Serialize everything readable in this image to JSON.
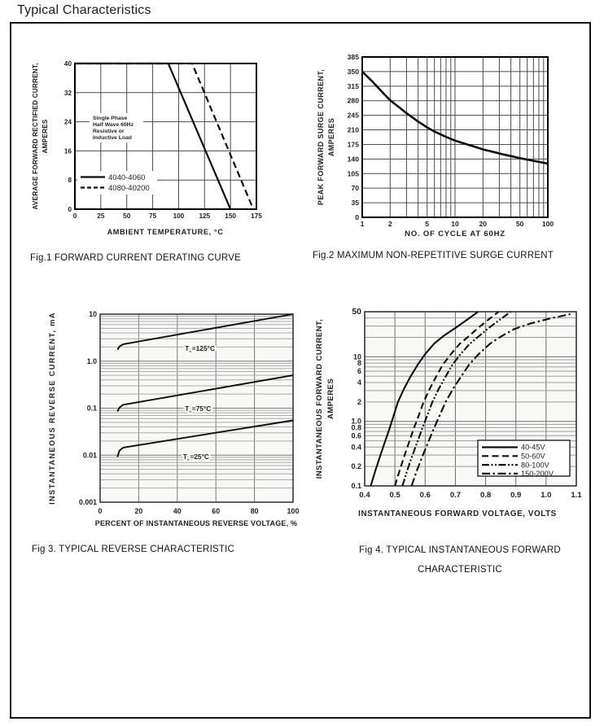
{
  "page": {
    "title": "Typical Characteristics"
  },
  "chart_data": [
    {
      "id": "fig1",
      "type": "line",
      "caption": "Fig.1 FORWARD CURRENT DERATING CURVE",
      "xlabel": "AMBIENT TEMPERATURE, °C",
      "ylabel_lines": [
        "AVERAGE FORWARD RECTIFIED CURRENT,",
        "AMPERES"
      ],
      "xscale": "linear",
      "xlim": [
        0,
        175
      ],
      "x_ticks": [
        "0",
        "25",
        "50",
        "75",
        "100",
        "125",
        "150",
        "175"
      ],
      "yscale": "linear",
      "ylim": [
        0,
        40
      ],
      "y_ticks": [
        "0",
        "8",
        "16",
        "24",
        "32",
        "40"
      ],
      "annotation_lines": [
        "Single Phase",
        "Half Wave 60Hz",
        "Resistive or",
        "Inductive Load"
      ],
      "series": [
        {
          "name": "4040-4060",
          "style": "solid",
          "points": [
            [
              0,
              40
            ],
            [
              90,
              40
            ],
            [
              150,
              0
            ]
          ]
        },
        {
          "name": "4080-40200",
          "style": "dashed",
          "points": [
            [
              0,
              40
            ],
            [
              113,
              40
            ],
            [
              172,
              0
            ]
          ]
        }
      ]
    },
    {
      "id": "fig2",
      "type": "line",
      "caption": "Fig.2 MAXIMUM NON-REPETITIVE SURGE CURRENT",
      "xlabel": "NO. OF CYCLE AT 60HZ",
      "ylabel_lines": [
        "PEAK FORWARD SURGE CURRENT,",
        "AMPERES"
      ],
      "xscale": "log",
      "xlim": [
        1,
        100
      ],
      "x_ticks": [
        "1",
        "2",
        "5",
        "10",
        "20",
        "50",
        "100"
      ],
      "yscale": "linear",
      "ylim": [
        0,
        385
      ],
      "y_ticks": [
        "0",
        "35",
        "70",
        "105",
        "140",
        "175",
        "210",
        "245",
        "280",
        "315",
        "350",
        "385"
      ],
      "series": [
        {
          "name": "surge-current",
          "style": "solid",
          "points": [
            [
              1,
              350
            ],
            [
              1.3,
              325
            ],
            [
              1.7,
              297
            ],
            [
              2,
              281
            ],
            [
              2.5,
              264
            ],
            [
              3,
              250
            ],
            [
              4,
              230
            ],
            [
              5,
              216
            ],
            [
              6,
              206
            ],
            [
              8,
              193
            ],
            [
              10,
              184
            ],
            [
              13,
              176
            ],
            [
              16,
              170
            ],
            [
              20,
              163
            ],
            [
              26,
              157
            ],
            [
              33,
              151
            ],
            [
              42,
              146
            ],
            [
              50,
              142
            ],
            [
              65,
              137
            ],
            [
              80,
              133
            ],
            [
              100,
              129
            ]
          ]
        }
      ]
    },
    {
      "id": "fig3",
      "type": "line",
      "caption": "Fig 3. TYPICAL REVERSE CHARACTERISTIC",
      "xlabel": "PERCENT OF INSTANTANEOUS REVERSE VOLTAGE, %",
      "ylabel": "INSTANTANEOUS REVERSE CURRENT, mA",
      "xscale": "linear",
      "xlim": [
        0,
        100
      ],
      "x_ticks": [
        "0",
        "20",
        "40",
        "60",
        "80",
        "100"
      ],
      "yscale": "log",
      "ylim": [
        0.001,
        10
      ],
      "y_ticks": [
        "10",
        "1.0",
        "0.1",
        "0.01",
        "0.001"
      ],
      "series": [
        {
          "name": "tj-125",
          "label": "TJ=125°C",
          "style": "solid",
          "label_at": [
            44,
            1.87
          ],
          "points": [
            [
              9,
              1.75
            ],
            [
              10,
              2.05
            ],
            [
              12,
              2.3
            ],
            [
              100,
              10
            ]
          ]
        },
        {
          "name": "tj-75",
          "label": "TJ=75°C",
          "style": "solid",
          "label_at": [
            44,
            0.098
          ],
          "points": [
            [
              9,
              0.085
            ],
            [
              10,
              0.103
            ],
            [
              12,
              0.118
            ],
            [
              100,
              0.5
            ]
          ]
        },
        {
          "name": "tj-25",
          "label": "TJ=25°C",
          "style": "solid",
          "label_at": [
            43,
            0.0093
          ],
          "points": [
            [
              9,
              0.0092
            ],
            [
              10,
              0.0125
            ],
            [
              12,
              0.0145
            ],
            [
              100,
              0.055
            ]
          ]
        }
      ]
    },
    {
      "id": "fig4",
      "type": "line",
      "caption": "Fig 4. TYPICAL INSTANTANEOUS FORWARD",
      "caption2": "CHARACTERISTIC",
      "xlabel": "INSTANTANEOUS FORWARD VOLTAGE, VOLTS",
      "ylabel_lines": [
        "INSTANTANEOUS FORWARD CURRENT,",
        "AMPERES"
      ],
      "xscale": "linear",
      "xlim": [
        0.4,
        1.1
      ],
      "x_ticks": [
        "0.4",
        "0.5",
        "0.6",
        "0.7",
        "0.8",
        "0.9",
        "1.0",
        "1.1"
      ],
      "yscale": "log",
      "ylim": [
        0.1,
        50
      ],
      "y_ticks": [
        "50",
        "10",
        "8",
        "6",
        "4",
        "2",
        "1.0",
        "0.8",
        "0.6",
        "0.4",
        "0.2",
        "0.1"
      ],
      "series": [
        {
          "name": "40-45V",
          "style": "solid",
          "points": [
            [
              0.42,
              0.1
            ],
            [
              0.435,
              0.17
            ],
            [
              0.45,
              0.28
            ],
            [
              0.465,
              0.45
            ],
            [
              0.48,
              0.72
            ],
            [
              0.495,
              1.2
            ],
            [
              0.51,
              2
            ],
            [
              0.53,
              3.2
            ],
            [
              0.55,
              4.8
            ],
            [
              0.575,
              7.5
            ],
            [
              0.6,
              11
            ],
            [
              0.63,
              16
            ],
            [
              0.66,
              21
            ],
            [
              0.7,
              28
            ],
            [
              0.74,
              38
            ],
            [
              0.775,
              50
            ]
          ]
        },
        {
          "name": "50-60V",
          "style": "dashed",
          "points": [
            [
              0.5,
              0.1
            ],
            [
              0.515,
              0.17
            ],
            [
              0.53,
              0.28
            ],
            [
              0.545,
              0.45
            ],
            [
              0.56,
              0.72
            ],
            [
              0.578,
              1.2
            ],
            [
              0.595,
              2
            ],
            [
              0.615,
              3.2
            ],
            [
              0.635,
              4.8
            ],
            [
              0.658,
              7.5
            ],
            [
              0.685,
              11
            ],
            [
              0.715,
              16
            ],
            [
              0.745,
              21
            ],
            [
              0.775,
              28
            ],
            [
              0.81,
              38
            ],
            [
              0.843,
              50
            ]
          ]
        },
        {
          "name": "80-100V",
          "style": "dashdotdot",
          "points": [
            [
              0.525,
              0.1
            ],
            [
              0.54,
              0.17
            ],
            [
              0.556,
              0.28
            ],
            [
              0.572,
              0.45
            ],
            [
              0.588,
              0.72
            ],
            [
              0.606,
              1.2
            ],
            [
              0.624,
              2
            ],
            [
              0.645,
              3.2
            ],
            [
              0.666,
              4.8
            ],
            [
              0.69,
              7.5
            ],
            [
              0.717,
              11
            ],
            [
              0.748,
              16
            ],
            [
              0.778,
              21
            ],
            [
              0.81,
              28
            ],
            [
              0.848,
              38
            ],
            [
              0.883,
              50
            ]
          ]
        },
        {
          "name": "150-200V",
          "style": "dashdot",
          "points": [
            [
              0.555,
              0.1
            ],
            [
              0.572,
              0.17
            ],
            [
              0.59,
              0.28
            ],
            [
              0.608,
              0.45
            ],
            [
              0.626,
              0.72
            ],
            [
              0.647,
              1.2
            ],
            [
              0.668,
              2
            ],
            [
              0.692,
              3.2
            ],
            [
              0.717,
              4.8
            ],
            [
              0.745,
              7.5
            ],
            [
              0.777,
              11
            ],
            [
              0.815,
              16
            ],
            [
              0.853,
              21
            ],
            [
              0.895,
              27
            ],
            [
              0.95,
              33
            ],
            [
              1.01,
              39
            ],
            [
              1.08,
              46
            ]
          ]
        }
      ],
      "colors": {
        "ink": "#0d0d0d"
      }
    }
  ]
}
